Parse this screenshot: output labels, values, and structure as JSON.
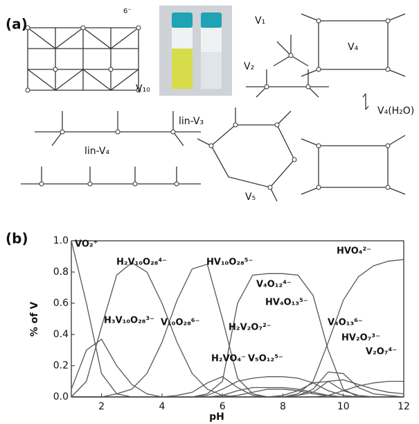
{
  "panel_a": {
    "label": "(a)",
    "charge": "6⁻",
    "structures": [
      "V₁₀",
      "V₁",
      "V₂",
      "V₄",
      "lin-V₃",
      "lin-V₄",
      "V₅",
      "V₄(H₂O)"
    ]
  },
  "chart_data": {
    "type": "line",
    "panel_label": "(b)",
    "xlabel": "pH",
    "ylabel": "% of V",
    "x": [
      1,
      1.5,
      2,
      2.5,
      3,
      3.5,
      4,
      4.5,
      5,
      5.5,
      6,
      6.5,
      7,
      7.5,
      8,
      8.5,
      9,
      9.5,
      10,
      10.5,
      11,
      11.5,
      12
    ],
    "xlim": [
      1,
      12
    ],
    "xticks": [
      2,
      4,
      6,
      8,
      10,
      12
    ],
    "ylim": [
      0,
      1
    ],
    "yticks": [
      {
        "value": 0,
        "label": "0.0"
      },
      0.2,
      0.4,
      0.6,
      0.8,
      {
        "value": 1,
        "label": "1.0"
      }
    ],
    "color": "#555555",
    "series": [
      {
        "name": "VO₂⁺",
        "values": [
          1.0,
          0.6,
          0.15,
          0.02,
          0,
          0,
          0,
          0,
          0,
          0,
          0,
          0,
          0,
          0,
          0,
          0,
          0,
          0,
          0,
          0,
          0,
          0,
          0
        ]
      },
      {
        "name": "H₂V₁₀O₂₈⁴⁻",
        "values": [
          0,
          0.1,
          0.45,
          0.78,
          0.86,
          0.8,
          0.6,
          0.35,
          0.15,
          0.05,
          0.01,
          0,
          0,
          0,
          0,
          0,
          0,
          0,
          0,
          0,
          0,
          0,
          0
        ]
      },
      {
        "name": "HV₁₀O₂₈⁵⁻",
        "values": [
          0,
          0,
          0,
          0.02,
          0.05,
          0.15,
          0.35,
          0.62,
          0.82,
          0.85,
          0.5,
          0.12,
          0.02,
          0,
          0,
          0,
          0,
          0,
          0,
          0,
          0,
          0,
          0
        ]
      },
      {
        "name": "V₄O₁₂⁴⁻",
        "values": [
          0,
          0,
          0,
          0,
          0,
          0,
          0,
          0,
          0,
          0.02,
          0.1,
          0.6,
          0.78,
          0.79,
          0.79,
          0.78,
          0.65,
          0.3,
          0.05,
          0,
          0,
          0,
          0
        ]
      },
      {
        "name": "HVO₄²⁻",
        "values": [
          0,
          0,
          0,
          0,
          0,
          0,
          0,
          0,
          0,
          0,
          0,
          0,
          0,
          0,
          0,
          0.02,
          0.1,
          0.35,
          0.62,
          0.77,
          0.84,
          0.87,
          0.88
        ]
      },
      {
        "name": "H₃V₁₀O₂₈³⁻",
        "values": [
          0.05,
          0.3,
          0.37,
          0.2,
          0.08,
          0.02,
          0,
          0,
          0,
          0,
          0,
          0,
          0,
          0,
          0,
          0,
          0,
          0,
          0,
          0,
          0,
          0,
          0
        ]
      },
      {
        "name": "V₁₀O₂₈⁶⁻",
        "values": [
          0,
          0,
          0,
          0,
          0,
          0,
          0,
          0.01,
          0.03,
          0.09,
          0.13,
          0.06,
          0.01,
          0,
          0,
          0,
          0,
          0,
          0,
          0,
          0,
          0,
          0
        ]
      },
      {
        "name": "H₂V₂O₇²⁻",
        "values": [
          0,
          0,
          0,
          0,
          0,
          0,
          0,
          0,
          0,
          0,
          0.01,
          0.04,
          0.06,
          0.06,
          0.06,
          0.05,
          0.03,
          0.01,
          0,
          0,
          0,
          0,
          0
        ]
      },
      {
        "name": "HV₄O₁₃⁵⁻",
        "values": [
          0,
          0,
          0,
          0,
          0,
          0,
          0,
          0,
          0,
          0,
          0,
          0,
          0,
          0,
          0.01,
          0.04,
          0.09,
          0.1,
          0.04,
          0.01,
          0,
          0,
          0
        ]
      },
      {
        "name": "V₄O₁₃⁶⁻",
        "values": [
          0,
          0,
          0,
          0,
          0,
          0,
          0,
          0,
          0,
          0,
          0,
          0,
          0,
          0,
          0,
          0.01,
          0.05,
          0.16,
          0.15,
          0.06,
          0.02,
          0.01,
          0
        ]
      },
      {
        "name": "HV₂O₇³⁻",
        "values": [
          0,
          0,
          0,
          0,
          0,
          0,
          0,
          0,
          0,
          0,
          0,
          0,
          0,
          0,
          0,
          0.01,
          0.03,
          0.1,
          0.11,
          0.08,
          0.05,
          0.03,
          0.02
        ]
      },
      {
        "name": "V₂O₇⁴⁻",
        "values": [
          0,
          0,
          0,
          0,
          0,
          0,
          0,
          0,
          0,
          0,
          0,
          0,
          0,
          0,
          0,
          0,
          0,
          0.01,
          0.04,
          0.07,
          0.09,
          0.1,
          0.1
        ]
      },
      {
        "name": "H₂VO₄⁻",
        "values": [
          0,
          0,
          0,
          0,
          0,
          0,
          0,
          0,
          0,
          0.01,
          0.05,
          0.1,
          0.12,
          0.13,
          0.13,
          0.12,
          0.09,
          0.04,
          0.01,
          0,
          0,
          0,
          0
        ]
      },
      {
        "name": "V₅O₁₂⁵⁻",
        "values": [
          0,
          0,
          0,
          0,
          0,
          0,
          0,
          0,
          0,
          0,
          0,
          0.01,
          0.03,
          0.05,
          0.05,
          0.04,
          0.02,
          0.01,
          0,
          0,
          0,
          0,
          0
        ]
      }
    ]
  }
}
